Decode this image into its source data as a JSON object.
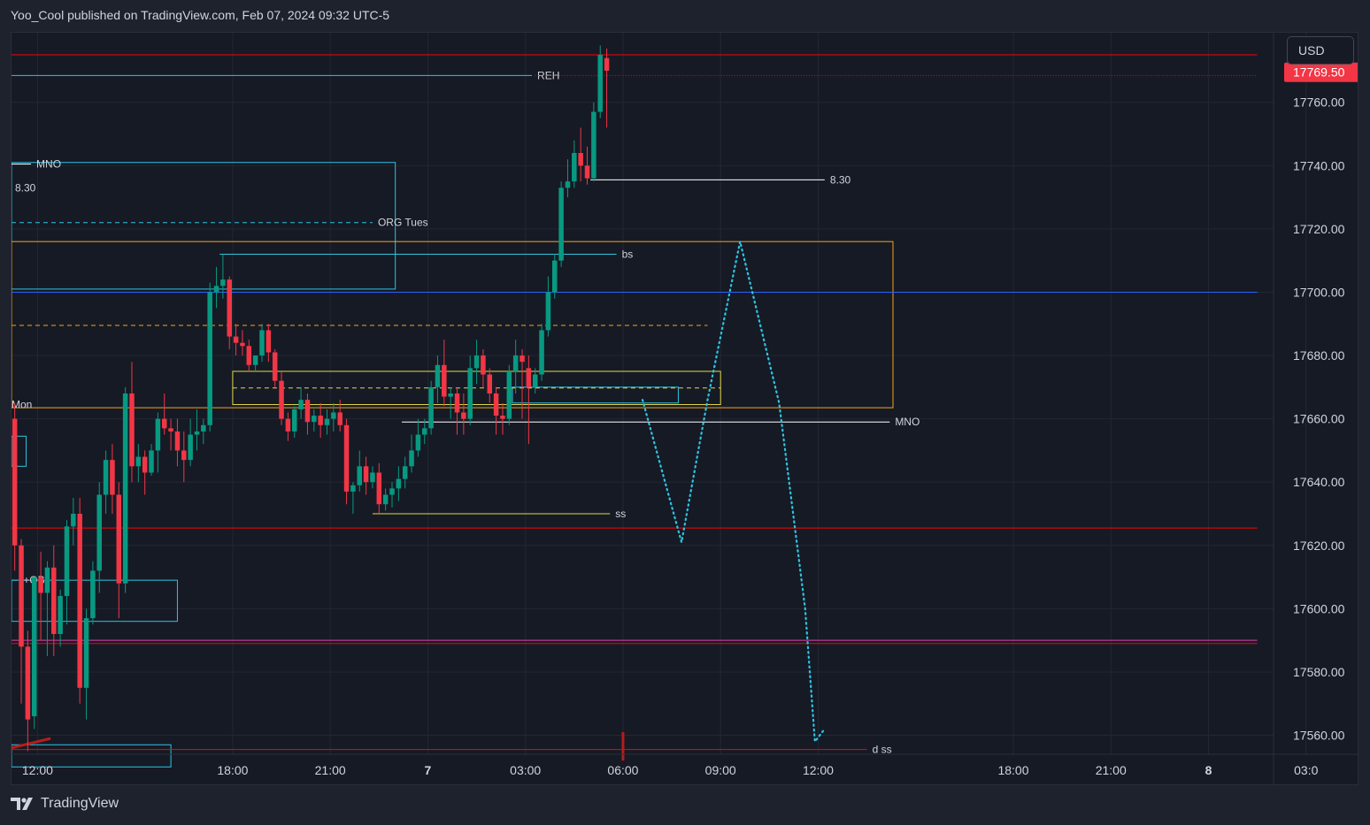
{
  "header": {
    "text": "Yoo_Cool published on TradingView.com, Feb 07, 2024 09:32 UTC-5"
  },
  "currency": "USD",
  "footer": {
    "brand": "TradingView",
    "logo_icon": "tradingview-logo-icon"
  },
  "colors": {
    "up": "#089981",
    "down": "#f23645",
    "bg": "#161a25",
    "grid": "#232734",
    "axis_text": "#d1d4dc",
    "cyan": "#2ec4e0",
    "orange": "#f7a21b",
    "yellow": "#e4d84a",
    "blue": "#2962ff",
    "pink": "#e040b0",
    "white": "#ffffff"
  },
  "chart_data": {
    "type": "candlestick",
    "symbol_currency": "USD",
    "last_price": {
      "value": 17769.5,
      "label": "17769.50"
    },
    "y_axis": {
      "ylim": [
        17554,
        17782
      ],
      "ticks": [
        {
          "v": 17760,
          "label": "17760.00"
        },
        {
          "v": 17740,
          "label": "17740.00"
        },
        {
          "v": 17720,
          "label": "17720.00"
        },
        {
          "v": 17700,
          "label": "17700.00"
        },
        {
          "v": 17680,
          "label": "17680.00"
        },
        {
          "v": 17660,
          "label": "17660.00"
        },
        {
          "v": 17640,
          "label": "17640.00"
        },
        {
          "v": 17620,
          "label": "17620.00"
        },
        {
          "v": 17600,
          "label": "17600.00"
        },
        {
          "v": 17580,
          "label": "17580.00"
        },
        {
          "v": 17560,
          "label": "17560.00"
        }
      ]
    },
    "x_axis": {
      "hour_range": [
        11.2,
        50.0
      ],
      "ticks": [
        {
          "t": 12,
          "label": "12:00"
        },
        {
          "t": 18,
          "label": "18:00"
        },
        {
          "t": 21,
          "label": "21:00"
        },
        {
          "t": 24,
          "label": "7",
          "bold": true
        },
        {
          "t": 27,
          "label": "03:00"
        },
        {
          "t": 30,
          "label": "06:00"
        },
        {
          "t": 33,
          "label": "09:00"
        },
        {
          "t": 36,
          "label": "12:00"
        },
        {
          "t": 42,
          "label": "18:00"
        },
        {
          "t": 45,
          "label": "21:00"
        },
        {
          "t": 48,
          "label": "8",
          "bold": true
        },
        {
          "t": 51,
          "label": "03:0"
        }
      ]
    },
    "candles": [
      {
        "t": 11.3,
        "o": 17660,
        "h": 17665,
        "c": 17620,
        "l": 17612
      },
      {
        "t": 11.5,
        "o": 17620,
        "h": 17622,
        "c": 17588,
        "l": 17570
      },
      {
        "t": 11.7,
        "o": 17588,
        "h": 17593,
        "c": 17565,
        "l": 17555
      },
      {
        "t": 11.9,
        "o": 17566,
        "h": 17610,
        "c": 17610,
        "l": 17562
      },
      {
        "t": 12.1,
        "o": 17610,
        "h": 17618,
        "c": 17605,
        "l": 17590
      },
      {
        "t": 12.3,
        "o": 17605,
        "h": 17615,
        "c": 17613,
        "l": 17585
      },
      {
        "t": 12.5,
        "o": 17613,
        "h": 17620,
        "c": 17592,
        "l": 17585
      },
      {
        "t": 12.7,
        "o": 17592,
        "h": 17606,
        "c": 17604,
        "l": 17588
      },
      {
        "t": 12.9,
        "o": 17604,
        "h": 17628,
        "c": 17626,
        "l": 17595
      },
      {
        "t": 13.1,
        "o": 17626,
        "h": 17635,
        "c": 17630,
        "l": 17620
      },
      {
        "t": 13.3,
        "o": 17630,
        "h": 17635,
        "c": 17575,
        "l": 17570
      },
      {
        "t": 13.5,
        "o": 17575,
        "h": 17600,
        "c": 17597,
        "l": 17565
      },
      {
        "t": 13.7,
        "o": 17597,
        "h": 17615,
        "c": 17612,
        "l": 17595
      },
      {
        "t": 13.9,
        "o": 17612,
        "h": 17640,
        "c": 17636,
        "l": 17605
      },
      {
        "t": 14.1,
        "o": 17636,
        "h": 17650,
        "c": 17647,
        "l": 17630
      },
      {
        "t": 14.3,
        "o": 17647,
        "h": 17652,
        "c": 17636,
        "l": 17630
      },
      {
        "t": 14.5,
        "o": 17636,
        "h": 17640,
        "c": 17608,
        "l": 17597
      },
      {
        "t": 14.7,
        "o": 17608,
        "h": 17670,
        "c": 17668,
        "l": 17605
      },
      {
        "t": 14.9,
        "o": 17668,
        "h": 17678,
        "c": 17645,
        "l": 17640
      },
      {
        "t": 15.1,
        "o": 17645,
        "h": 17652,
        "c": 17648,
        "l": 17640
      },
      {
        "t": 15.3,
        "o": 17648,
        "h": 17650,
        "c": 17643,
        "l": 17636
      },
      {
        "t": 15.5,
        "o": 17643,
        "h": 17652,
        "c": 17650,
        "l": 17642
      },
      {
        "t": 15.7,
        "o": 17650,
        "h": 17662,
        "c": 17660,
        "l": 17643
      },
      {
        "t": 15.9,
        "o": 17660,
        "h": 17668,
        "c": 17657,
        "l": 17655
      },
      {
        "t": 16.1,
        "o": 17657,
        "h": 17660,
        "c": 17656,
        "l": 17650
      },
      {
        "t": 16.3,
        "o": 17656,
        "h": 17660,
        "c": 17650,
        "l": 17645
      },
      {
        "t": 16.5,
        "o": 17650,
        "h": 17656,
        "c": 17647,
        "l": 17640
      },
      {
        "t": 16.7,
        "o": 17647,
        "h": 17660,
        "c": 17655,
        "l": 17645
      },
      {
        "t": 16.9,
        "o": 17655,
        "h": 17663,
        "c": 17656,
        "l": 17650
      },
      {
        "t": 17.1,
        "o": 17656,
        "h": 17660,
        "c": 17658,
        "l": 17652
      },
      {
        "t": 17.3,
        "o": 17658,
        "h": 17703,
        "c": 17700,
        "l": 17656
      },
      {
        "t": 17.5,
        "o": 17700,
        "h": 17708,
        "c": 17702,
        "l": 17695
      },
      {
        "t": 17.7,
        "o": 17702,
        "h": 17712,
        "c": 17704,
        "l": 17698
      },
      {
        "t": 17.9,
        "o": 17704,
        "h": 17705,
        "c": 17686,
        "l": 17682
      },
      {
        "t": 18.1,
        "o": 17686,
        "h": 17690,
        "c": 17684,
        "l": 17680
      },
      {
        "t": 18.3,
        "o": 17684,
        "h": 17688,
        "c": 17683,
        "l": 17680
      },
      {
        "t": 18.5,
        "o": 17683,
        "h": 17685,
        "c": 17677,
        "l": 17675
      },
      {
        "t": 18.7,
        "o": 17677,
        "h": 17680,
        "c": 17680,
        "l": 17675
      },
      {
        "t": 18.9,
        "o": 17680,
        "h": 17690,
        "c": 17688,
        "l": 17678
      },
      {
        "t": 19.1,
        "o": 17688,
        "h": 17690,
        "c": 17681,
        "l": 17678
      },
      {
        "t": 19.3,
        "o": 17681,
        "h": 17682,
        "c": 17672,
        "l": 17670
      },
      {
        "t": 19.5,
        "o": 17672,
        "h": 17675,
        "c": 17660,
        "l": 17658
      },
      {
        "t": 19.7,
        "o": 17660,
        "h": 17662,
        "c": 17656,
        "l": 17653
      },
      {
        "t": 19.9,
        "o": 17656,
        "h": 17664,
        "c": 17663,
        "l": 17654
      },
      {
        "t": 20.1,
        "o": 17663,
        "h": 17670,
        "c": 17666,
        "l": 17660
      },
      {
        "t": 20.3,
        "o": 17666,
        "h": 17668,
        "c": 17659,
        "l": 17655
      },
      {
        "t": 20.5,
        "o": 17659,
        "h": 17663,
        "c": 17661,
        "l": 17656
      },
      {
        "t": 20.7,
        "o": 17661,
        "h": 17665,
        "c": 17658,
        "l": 17654
      },
      {
        "t": 20.9,
        "o": 17658,
        "h": 17663,
        "c": 17660,
        "l": 17655
      },
      {
        "t": 21.1,
        "o": 17660,
        "h": 17665,
        "c": 17662,
        "l": 17656
      },
      {
        "t": 21.3,
        "o": 17662,
        "h": 17666,
        "c": 17658,
        "l": 17656
      },
      {
        "t": 21.5,
        "o": 17658,
        "h": 17660,
        "c": 17637,
        "l": 17633
      },
      {
        "t": 21.7,
        "o": 17637,
        "h": 17640,
        "c": 17639,
        "l": 17630
      },
      {
        "t": 21.9,
        "o": 17639,
        "h": 17650,
        "c": 17645,
        "l": 17637
      },
      {
        "t": 22.1,
        "o": 17645,
        "h": 17648,
        "c": 17640,
        "l": 17636
      },
      {
        "t": 22.3,
        "o": 17640,
        "h": 17645,
        "c": 17643,
        "l": 17638
      },
      {
        "t": 22.5,
        "o": 17643,
        "h": 17646,
        "c": 17633,
        "l": 17630
      },
      {
        "t": 22.7,
        "o": 17633,
        "h": 17638,
        "c": 17636,
        "l": 17631
      },
      {
        "t": 22.9,
        "o": 17636,
        "h": 17640,
        "c": 17638,
        "l": 17632
      },
      {
        "t": 23.1,
        "o": 17638,
        "h": 17645,
        "c": 17641,
        "l": 17634
      },
      {
        "t": 23.3,
        "o": 17641,
        "h": 17648,
        "c": 17645,
        "l": 17638
      },
      {
        "t": 23.5,
        "o": 17645,
        "h": 17655,
        "c": 17650,
        "l": 17643
      },
      {
        "t": 23.7,
        "o": 17650,
        "h": 17660,
        "c": 17655,
        "l": 17648
      },
      {
        "t": 23.9,
        "o": 17655,
        "h": 17660,
        "c": 17657,
        "l": 17652
      },
      {
        "t": 24.1,
        "o": 17657,
        "h": 17672,
        "c": 17670,
        "l": 17655
      },
      {
        "t": 24.3,
        "o": 17670,
        "h": 17680,
        "c": 17677,
        "l": 17665
      },
      {
        "t": 24.5,
        "o": 17677,
        "h": 17685,
        "c": 17667,
        "l": 17664
      },
      {
        "t": 24.7,
        "o": 17667,
        "h": 17670,
        "c": 17668,
        "l": 17660
      },
      {
        "t": 24.9,
        "o": 17668,
        "h": 17670,
        "c": 17662,
        "l": 17655
      },
      {
        "t": 25.1,
        "o": 17662,
        "h": 17668,
        "c": 17660,
        "l": 17655
      },
      {
        "t": 25.3,
        "o": 17660,
        "h": 17680,
        "c": 17676,
        "l": 17658
      },
      {
        "t": 25.5,
        "o": 17676,
        "h": 17685,
        "c": 17680,
        "l": 17671
      },
      {
        "t": 25.7,
        "o": 17680,
        "h": 17682,
        "c": 17674,
        "l": 17670
      },
      {
        "t": 25.9,
        "o": 17674,
        "h": 17676,
        "c": 17668,
        "l": 17665
      },
      {
        "t": 26.1,
        "o": 17668,
        "h": 17670,
        "c": 17661,
        "l": 17655
      },
      {
        "t": 26.3,
        "o": 17661,
        "h": 17665,
        "c": 17660,
        "l": 17655
      },
      {
        "t": 26.5,
        "o": 17660,
        "h": 17677,
        "c": 17675,
        "l": 17658
      },
      {
        "t": 26.7,
        "o": 17675,
        "h": 17685,
        "c": 17680,
        "l": 17668
      },
      {
        "t": 26.9,
        "o": 17680,
        "h": 17682,
        "c": 17678,
        "l": 17660
      },
      {
        "t": 27.1,
        "o": 17676,
        "h": 17680,
        "c": 17670,
        "l": 17652
      },
      {
        "t": 27.3,
        "o": 17670,
        "h": 17676,
        "c": 17674,
        "l": 17668
      },
      {
        "t": 27.5,
        "o": 17674,
        "h": 17690,
        "c": 17688,
        "l": 17672
      },
      {
        "t": 27.7,
        "o": 17688,
        "h": 17705,
        "c": 17700,
        "l": 17686
      },
      {
        "t": 27.9,
        "o": 17700,
        "h": 17712,
        "c": 17710,
        "l": 17698
      },
      {
        "t": 28.1,
        "o": 17710,
        "h": 17735,
        "c": 17733,
        "l": 17708
      },
      {
        "t": 28.3,
        "o": 17733,
        "h": 17742,
        "c": 17735,
        "l": 17730
      },
      {
        "t": 28.5,
        "o": 17735,
        "h": 17748,
        "c": 17744,
        "l": 17733
      },
      {
        "t": 28.7,
        "o": 17744,
        "h": 17752,
        "c": 17740,
        "l": 17735
      },
      {
        "t": 28.9,
        "o": 17740,
        "h": 17746,
        "c": 17736,
        "l": 17734
      },
      {
        "t": 29.1,
        "o": 17736,
        "h": 17760,
        "c": 17757,
        "l": 17735
      },
      {
        "t": 29.3,
        "o": 17757,
        "h": 17778,
        "c": 17775,
        "l": 17755
      },
      {
        "t": 29.5,
        "o": 17774,
        "h": 17777,
        "c": 17770,
        "l": 17752
      }
    ],
    "levels": [
      {
        "id": "red-top",
        "price": 17775,
        "t1": 11.2,
        "t2": 49.5,
        "color": "red",
        "style": "solid"
      },
      {
        "id": "reh",
        "price": 17768.5,
        "t1": 11.2,
        "t2": 27.2,
        "color": "cyan",
        "style": "solid",
        "label": "REH"
      },
      {
        "id": "reh-dotted",
        "price": 17768.5,
        "t1": 27.3,
        "t2": 49.5,
        "color": "red",
        "style": "dotted"
      },
      {
        "id": "830-right",
        "price": 17735.5,
        "t1": 29.0,
        "t2": 36.2,
        "color": "white",
        "style": "solid",
        "label": "8.30"
      },
      {
        "id": "blue-17700",
        "price": 17700,
        "t1": 11.2,
        "t2": 49.5,
        "color": "blue",
        "style": "solid"
      },
      {
        "id": "orange-mid",
        "price": 17689.5,
        "t1": 11.2,
        "t2": 32.6,
        "color": "orange",
        "style": "dashed"
      },
      {
        "id": "mno-right",
        "price": 17659,
        "t1": 23.2,
        "t2": 38.2,
        "color": "white",
        "style": "solid",
        "label": "MNO"
      },
      {
        "id": "ss",
        "price": 17630,
        "t1": 22.3,
        "t2": 29.6,
        "color": "yellow",
        "style": "solid",
        "label": "ss"
      },
      {
        "id": "red-17625",
        "price": 17625.5,
        "t1": 11.2,
        "t2": 49.5,
        "color": "red",
        "style": "solid"
      },
      {
        "id": "pink-a",
        "price": 17590,
        "t1": 11.2,
        "t2": 49.5,
        "color": "pink",
        "style": "solid"
      },
      {
        "id": "red-a",
        "price": 17589,
        "t1": 11.2,
        "t2": 49.5,
        "color": "red",
        "style": "solid"
      },
      {
        "id": "d-ss",
        "price": 17555.5,
        "t1": 11.2,
        "t2": 37.5,
        "color": "red",
        "style": "solid",
        "label": "d ss"
      },
      {
        "id": "mno-left",
        "price": 17740.5,
        "t1": 11.2,
        "t2": 11.8,
        "color": "white",
        "style": "solid",
        "label": "MNO"
      },
      {
        "id": "830-left",
        "price": 17733,
        "t1": 11.2,
        "t2": 11.2,
        "color": "white",
        "style": "solid",
        "label": "8.30"
      },
      {
        "id": "org-tues",
        "price": 17722,
        "t1": 11.2,
        "t2": 22.3,
        "color": "cyan",
        "style": "dashed",
        "label": "ORG Tues"
      },
      {
        "id": "bs",
        "price": 17712,
        "t1": 17.6,
        "t2": 29.8,
        "color": "cyan",
        "style": "solid",
        "label": "bs"
      },
      {
        "id": "ob",
        "price": 17609,
        "t1": 11.2,
        "t2": 11.4,
        "color": "cyan",
        "style": "solid",
        "label": "+OB"
      },
      {
        "id": "mon",
        "price": 17664.5,
        "t1": 11.2,
        "t2": 11.2,
        "color": "white",
        "style": "none",
        "label": "Mon"
      }
    ],
    "zones": [
      {
        "id": "org-tues-box",
        "t1": 11.2,
        "t2": 23.0,
        "p1": 17741,
        "p2": 17701,
        "color": "cyan"
      },
      {
        "id": "orange-zone",
        "t1": 11.2,
        "t2": 38.3,
        "p1": 17716,
        "p2": 17663.5,
        "color": "orange"
      },
      {
        "id": "yellow-box",
        "t1": 18.0,
        "t2": 33.0,
        "p1": 17675,
        "p2": 17664.5,
        "color": "yellow"
      },
      {
        "id": "inner-cyan-box",
        "t1": 26.6,
        "t2": 31.7,
        "p1": 17670,
        "p2": 17665,
        "color": "cyan"
      },
      {
        "id": "ob-box-1",
        "t1": 11.2,
        "t2": 11.65,
        "p1": 17654.5,
        "p2": 17645,
        "color": "cyan"
      },
      {
        "id": "ob-box-2",
        "t1": 11.2,
        "t2": 16.3,
        "p1": 17609,
        "p2": 17596,
        "color": "cyan"
      },
      {
        "id": "bottom-cyan",
        "t1": 11.2,
        "t2": 16.1,
        "p1": 17557,
        "p2": 17550,
        "color": "cyan"
      }
    ],
    "projection": {
      "style": "dotted",
      "color": "cyan",
      "points": [
        {
          "t": 30.6,
          "p": 17666
        },
        {
          "t": 31.8,
          "p": 17621
        },
        {
          "t": 32.6,
          "p": 17666
        },
        {
          "t": 33.6,
          "p": 17716
        },
        {
          "t": 34.8,
          "p": 17665
        },
        {
          "t": 35.6,
          "p": 17600
        },
        {
          "t": 35.9,
          "p": 17558
        },
        {
          "t": 36.2,
          "p": 17562
        }
      ]
    }
  }
}
